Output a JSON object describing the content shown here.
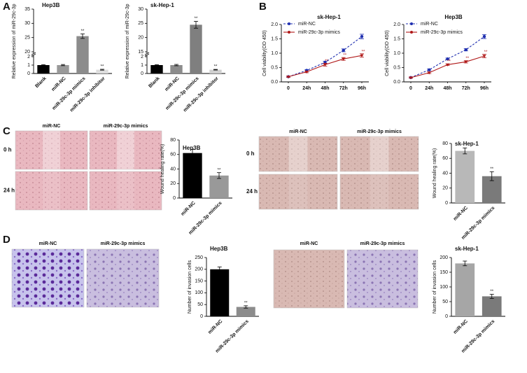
{
  "panel_labels": [
    "A",
    "B",
    "C",
    "D"
  ],
  "image_panels": [
    {
      "columns": [
        "miR-NC",
        "miR-29c-3p mimics"
      ],
      "rows": [
        "0 h",
        "24 h"
      ]
    },
    {
      "columns": [
        "miR-NC",
        "miR-29c-3p mimics"
      ],
      "rows": [
        "0 h",
        "24 h"
      ]
    },
    {
      "columns": [
        "miR-NC",
        "miR-29c-3p mimics"
      ]
    },
    {
      "columns": [
        "miR-NC",
        "miR-29c-3p mimics"
      ]
    }
  ],
  "chart_data": [
    {
      "type": "bar",
      "title": "Hep3B",
      "y_label": "Relative expression of miR-29c-3p",
      "categories": [
        "Blank",
        "miR-NC",
        "miR-29c-3p mimics",
        "miR-29c-3p inhibitor"
      ],
      "values": [
        1.0,
        1.0,
        25.5,
        0.45
      ],
      "errors": [
        0.05,
        0.07,
        0.8,
        0.05
      ],
      "annotations": [
        null,
        null,
        "**",
        "**"
      ],
      "colors": [
        "#000000",
        "#999999",
        "#8c8c8c",
        "#dddddd"
      ],
      "ylim": [
        0,
        35
      ],
      "ybreak": [
        2,
        20
      ],
      "yticks": [
        0,
        1,
        2,
        20,
        25,
        30,
        35
      ]
    },
    {
      "type": "bar",
      "title": "sk-Hep-1",
      "y_label": "Relative expression of miR-29c-3p",
      "categories": [
        "Blank",
        "miR-NC",
        "miR-29c-3p mimics",
        "miR-29c-3p inhibitor"
      ],
      "values": [
        1.0,
        1.0,
        24.5,
        0.45
      ],
      "errors": [
        0.05,
        0.08,
        1.2,
        0.04
      ],
      "annotations": [
        null,
        null,
        "**",
        "**"
      ],
      "colors": [
        "#000000",
        "#8c8c8c",
        "#7f7f7f",
        "#d0d0d0"
      ],
      "ylim": [
        0,
        30
      ],
      "ybreak": [
        2,
        15
      ],
      "yticks": [
        0,
        1,
        2,
        15,
        20,
        25,
        30
      ]
    },
    {
      "type": "line",
      "title": "sk-Hep-1",
      "y_label": "Cell viability(OD 450)",
      "categories": [
        "0",
        "24h",
        "48h",
        "72h",
        "96h"
      ],
      "series": [
        {
          "name": "miR-NC",
          "color": "#1f2fb0",
          "line_style": "dashed",
          "values": [
            0.18,
            0.4,
            0.68,
            1.1,
            1.58
          ],
          "errors": [
            0.02,
            0.03,
            0.04,
            0.05,
            0.08
          ],
          "annotations": [
            null,
            null,
            null,
            null,
            null
          ]
        },
        {
          "name": "miR-29c-3p mimics",
          "color": "#b01818",
          "line_style": "solid",
          "values": [
            0.18,
            0.35,
            0.6,
            0.8,
            0.92
          ],
          "errors": [
            0.02,
            0.03,
            0.05,
            0.05,
            0.06
          ],
          "annotations": [
            null,
            null,
            "**",
            "**",
            "**"
          ]
        }
      ],
      "ylim": [
        0,
        2
      ],
      "yticks": [
        {
          "value": 0,
          "label": "0.0"
        },
        {
          "value": 0.5,
          "label": "0.5"
        },
        {
          "value": 1,
          "label": "1.0"
        },
        {
          "value": 1.5,
          "label": "1.5"
        },
        {
          "value": 2,
          "label": "2.0"
        }
      ]
    },
    {
      "type": "line",
      "title": "Hep3B",
      "y_label": "Cell viability(OD 450)",
      "categories": [
        "0",
        "24h",
        "48h",
        "72h",
        "96h"
      ],
      "series": [
        {
          "name": "miR-NC",
          "color": "#1f2fb0",
          "line_style": "dashed",
          "values": [
            0.15,
            0.42,
            0.8,
            1.12,
            1.58
          ],
          "errors": [
            0.02,
            0.03,
            0.03,
            0.04,
            0.07
          ],
          "annotations": [
            null,
            null,
            null,
            null,
            null
          ]
        },
        {
          "name": "miR-29c-3p mimics",
          "color": "#b01818",
          "line_style": "solid",
          "values": [
            0.15,
            0.32,
            0.6,
            0.7,
            0.9
          ],
          "errors": [
            0.02,
            0.03,
            0.03,
            0.04,
            0.06
          ],
          "annotations": [
            null,
            null,
            "**",
            "**",
            "**"
          ]
        }
      ],
      "ylim": [
        0,
        2
      ],
      "yticks": [
        {
          "value": 0,
          "label": "0.0"
        },
        {
          "value": 0.5,
          "label": "0.5"
        },
        {
          "value": 1,
          "label": "1.0"
        },
        {
          "value": 1.5,
          "label": "1.5"
        },
        {
          "value": 2,
          "label": "2.0"
        }
      ]
    },
    {
      "type": "bar",
      "title": "Hep3B",
      "y_label": "Wound healing rate(%)",
      "categories": [
        "miR-NC",
        "miR-29c-3p mimics"
      ],
      "values": [
        62,
        31
      ],
      "errors": [
        5,
        4
      ],
      "annotations": [
        null,
        "**"
      ],
      "colors": [
        "#000000",
        "#999999"
      ],
      "ylim": [
        0,
        80
      ],
      "yticks": [
        0,
        20,
        40,
        60,
        80
      ]
    },
    {
      "type": "bar",
      "title": "sk-Hep-1",
      "y_label": "Wound healing rate(%)",
      "categories": [
        "miR-NC",
        "miR-29c-3p mimics"
      ],
      "values": [
        70,
        36
      ],
      "errors": [
        4,
        6
      ],
      "annotations": [
        null,
        "**"
      ],
      "colors": [
        "#b8b8b8",
        "#7a7a7a"
      ],
      "ylim": [
        0,
        80
      ],
      "yticks": [
        0,
        20,
        40,
        60,
        80
      ]
    },
    {
      "type": "bar",
      "title": "Hep3B",
      "y_label": "Number of invasion cells",
      "categories": [
        "miR-NC",
        "miR-29c-3p mimics"
      ],
      "values": [
        200,
        40
      ],
      "errors": [
        10,
        5
      ],
      "annotations": [
        null,
        "**"
      ],
      "colors": [
        "#000000",
        "#8c8c8c"
      ],
      "ylim": [
        0,
        250
      ],
      "yticks": [
        0,
        50,
        100,
        150,
        200,
        250
      ]
    },
    {
      "type": "bar",
      "title": "sk-Hep-1",
      "y_label": "Number of invasion cells",
      "categories": [
        "miR-NC",
        "miR-29c-3p mimics"
      ],
      "values": [
        180,
        68
      ],
      "errors": [
        8,
        7
      ],
      "annotations": [
        null,
        "**"
      ],
      "colors": [
        "#a6a6a6",
        "#7a7a7a"
      ],
      "ylim": [
        0,
        200
      ],
      "yticks": [
        0,
        50,
        100,
        150,
        200
      ]
    }
  ]
}
